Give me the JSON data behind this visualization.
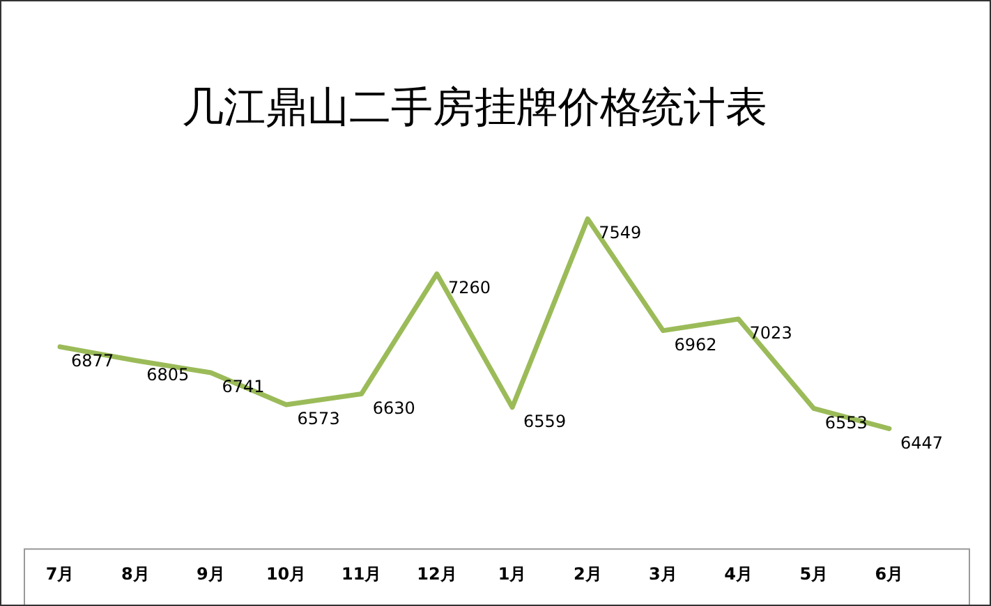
{
  "chart_data": {
    "type": "line",
    "title": "几江鼎山二手房挂牌价格统计表",
    "categories": [
      "7月",
      "8月",
      "9月",
      "10月",
      "11月",
      "12月",
      "1月",
      "2月",
      "3月",
      "4月",
      "5月",
      "6月"
    ],
    "series": [
      {
        "color": "#9bbb59",
        "values": [
          6877,
          6805,
          6741,
          6573,
          6630,
          7260,
          6559,
          7549,
          6962,
          7023,
          6553,
          6447
        ]
      }
    ],
    "data_labels": true,
    "grid": false,
    "legend": false,
    "marker": "none",
    "line_style": "solid"
  }
}
